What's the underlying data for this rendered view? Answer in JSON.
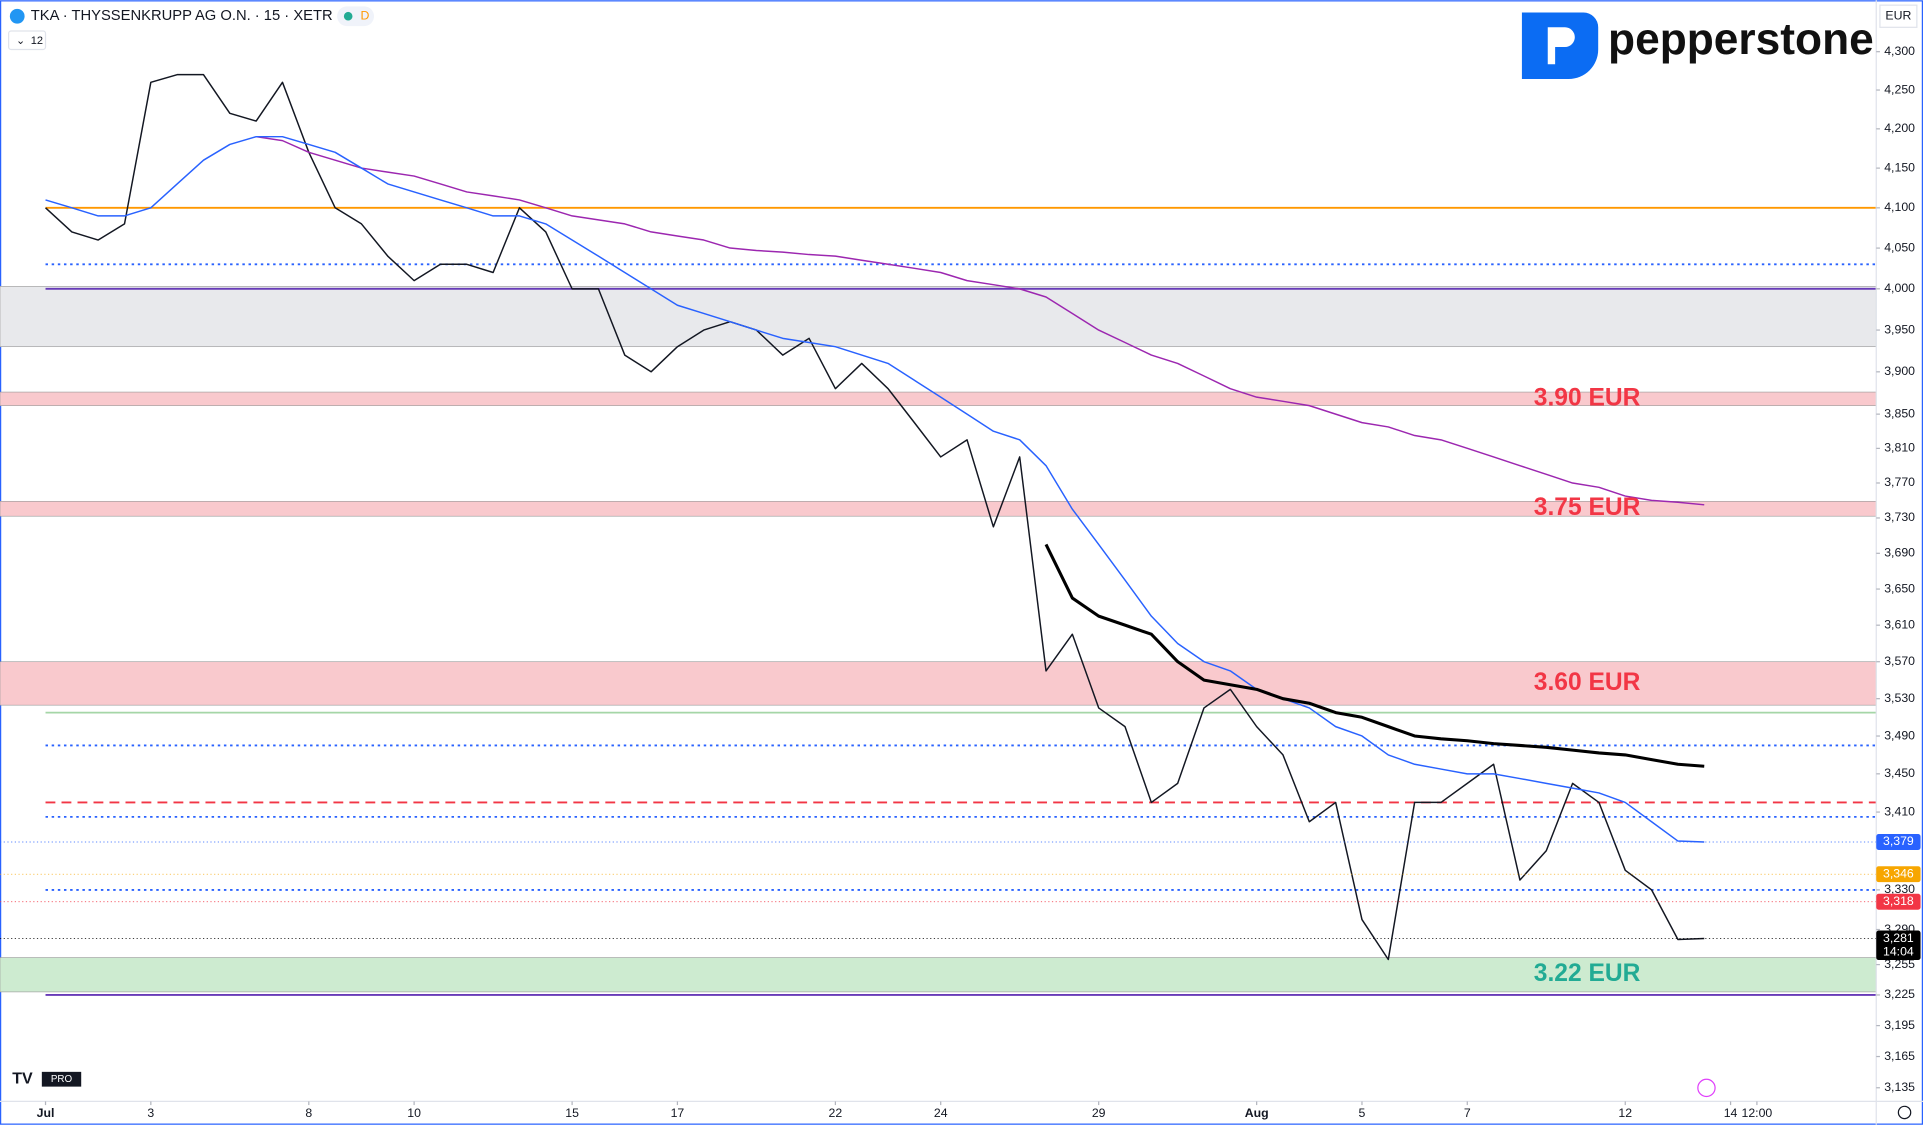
{
  "header": {
    "symbol": "TKA · THYSSENKRUPP AG O.N. · 15 · XETR",
    "badge": "D",
    "interval_count": "12",
    "currency": "EUR",
    "brand": "pepperstone",
    "tv_badge": "PRO"
  },
  "chart_data": {
    "type": "line",
    "log_scale": true,
    "categories": [
      "Jul",
      null,
      null,
      null,
      "3",
      null,
      null,
      null,
      null,
      null,
      "8",
      null,
      null,
      null,
      "10",
      null,
      null,
      null,
      null,
      null,
      "15",
      null,
      null,
      null,
      "17",
      null,
      null,
      null,
      null,
      null,
      "22",
      null,
      null,
      null,
      "24",
      null,
      null,
      null,
      null,
      null,
      "29",
      null,
      null,
      null,
      null,
      null,
      "Aug",
      null,
      null,
      null,
      "5",
      null,
      null,
      null,
      "7",
      null,
      null,
      null,
      null,
      null,
      "12",
      null,
      null,
      null,
      "14",
      "12:00"
    ],
    "series": [
      {
        "color": "#131722",
        "values": [
          4.1,
          4.07,
          4.06,
          4.08,
          4.26,
          4.27,
          4.27,
          4.22,
          4.21,
          4.26,
          4.17,
          4.1,
          4.08,
          4.04,
          4.01,
          4.03,
          4.03,
          4.02,
          4.1,
          4.07,
          4.0,
          4.0,
          3.92,
          3.9,
          3.93,
          3.95,
          3.96,
          3.95,
          3.92,
          3.94,
          3.88,
          3.91,
          3.88,
          3.84,
          3.8,
          3.82,
          3.72,
          3.8,
          3.56,
          3.6,
          3.52,
          3.5,
          3.42,
          3.44,
          3.52,
          3.54,
          3.5,
          3.47,
          3.4,
          3.42,
          3.3,
          3.26,
          3.42,
          3.42,
          3.44,
          3.46,
          3.34,
          3.37,
          3.44,
          3.42,
          3.35,
          3.33,
          3.28,
          3.281,
          null,
          null
        ]
      },
      {
        "color": "#9c27b0",
        "values": [
          null,
          null,
          null,
          null,
          null,
          null,
          null,
          null,
          4.19,
          4.185,
          4.17,
          4.16,
          4.15,
          4.145,
          4.14,
          4.13,
          4.12,
          4.115,
          4.11,
          4.1,
          4.09,
          4.085,
          4.08,
          4.07,
          4.065,
          4.06,
          4.05,
          4.047,
          4.045,
          4.042,
          4.04,
          4.035,
          4.03,
          4.025,
          4.02,
          4.01,
          4.005,
          4.0,
          3.99,
          3.97,
          3.95,
          3.935,
          3.92,
          3.91,
          3.895,
          3.88,
          3.87,
          3.865,
          3.86,
          3.85,
          3.84,
          3.835,
          3.825,
          3.82,
          3.81,
          3.8,
          3.79,
          3.78,
          3.77,
          3.765,
          3.755,
          3.75,
          3.748,
          3.745,
          null,
          null
        ]
      },
      {
        "color": "#2962ff",
        "values": [
          4.11,
          4.1,
          4.09,
          4.09,
          4.1,
          4.13,
          4.16,
          4.18,
          4.19,
          4.19,
          4.18,
          4.17,
          4.15,
          4.13,
          4.12,
          4.11,
          4.1,
          4.09,
          4.09,
          4.08,
          4.06,
          4.04,
          4.02,
          4.0,
          3.98,
          3.97,
          3.96,
          3.95,
          3.94,
          3.935,
          3.93,
          3.92,
          3.91,
          3.89,
          3.87,
          3.85,
          3.83,
          3.82,
          3.79,
          3.74,
          3.7,
          3.66,
          3.62,
          3.59,
          3.57,
          3.56,
          3.54,
          3.53,
          3.52,
          3.5,
          3.49,
          3.47,
          3.46,
          3.455,
          3.45,
          3.45,
          3.445,
          3.44,
          3.435,
          3.43,
          3.42,
          3.4,
          3.38,
          3.379,
          null,
          null
        ]
      },
      {
        "color": "#000000",
        "values": [
          null,
          null,
          null,
          null,
          null,
          null,
          null,
          null,
          null,
          null,
          null,
          null,
          null,
          null,
          null,
          null,
          null,
          null,
          null,
          null,
          null,
          null,
          null,
          null,
          null,
          null,
          null,
          null,
          null,
          null,
          null,
          null,
          null,
          null,
          null,
          null,
          null,
          null,
          3.7,
          3.64,
          3.62,
          3.61,
          3.6,
          3.57,
          3.55,
          3.545,
          3.54,
          3.53,
          3.525,
          3.515,
          3.51,
          3.5,
          3.49,
          3.487,
          3.485,
          3.482,
          3.48,
          3.478,
          3.475,
          3.472,
          3.47,
          3.465,
          3.46,
          3.458,
          null,
          null
        ]
      }
    ],
    "ylim": [
      3.122,
      4.368
    ],
    "yticks": [
      {
        "value": 4.3,
        "label": "4,300"
      },
      {
        "value": 4.25,
        "label": "4,250"
      },
      {
        "value": 4.2,
        "label": "4,200"
      },
      {
        "value": 4.15,
        "label": "4,150"
      },
      {
        "value": 4.1,
        "label": "4,100"
      },
      {
        "value": 4.05,
        "label": "4,050"
      },
      {
        "value": 4.0,
        "label": "4,000"
      },
      {
        "value": 3.95,
        "label": "3,950"
      },
      {
        "value": 3.9,
        "label": "3,900"
      },
      {
        "value": 3.85,
        "label": "3,850"
      },
      {
        "value": 3.81,
        "label": "3,810"
      },
      {
        "value": 3.77,
        "label": "3,770"
      },
      {
        "value": 3.73,
        "label": "3,730"
      },
      {
        "value": 3.69,
        "label": "3,690"
      },
      {
        "value": 3.65,
        "label": "3,650"
      },
      {
        "value": 3.61,
        "label": "3,610"
      },
      {
        "value": 3.57,
        "label": "3,570"
      },
      {
        "value": 3.53,
        "label": "3,530"
      },
      {
        "value": 3.49,
        "label": "3,490"
      },
      {
        "value": 3.45,
        "label": "3,450"
      },
      {
        "value": 3.41,
        "label": "3,410"
      },
      {
        "value": 3.33,
        "label": "3,330"
      },
      {
        "value": 3.29,
        "label": "3,290"
      },
      {
        "value": 3.255,
        "label": "3,255"
      },
      {
        "value": 3.225,
        "label": "3,225"
      },
      {
        "value": 3.195,
        "label": "3,195"
      },
      {
        "value": 3.165,
        "label": "3,165"
      },
      {
        "value": 3.135,
        "label": "3,135"
      }
    ],
    "zones": [
      {
        "low": 3.93,
        "high": 4.003,
        "color": "#e8e9ec"
      },
      {
        "low": 3.86,
        "high": 3.876,
        "color": "#f9c9cd",
        "label": "3.90 EUR",
        "label_color": "#f23645"
      },
      {
        "low": 3.732,
        "high": 3.749,
        "color": "#f9c9cd",
        "label": "3.75 EUR",
        "label_color": "#f23645"
      },
      {
        "low": 3.523,
        "high": 3.57,
        "color": "#f9c9cd",
        "label": "3.60 EUR",
        "label_color": "#f23645"
      },
      {
        "low": 3.228,
        "high": 3.262,
        "color": "#cdebd0",
        "label": "3.22 EUR",
        "label_color": "#22ab94"
      }
    ],
    "levels": [
      {
        "value": 4.03,
        "color": "#2962ff",
        "dash": "2 3"
      },
      {
        "value": 4.0,
        "color": "#673ab7",
        "dash": "none"
      },
      {
        "value": 3.42,
        "color": "#f23645",
        "dash": "8 5"
      },
      {
        "value": 3.405,
        "color": "#2962ff",
        "dash": "2 3"
      },
      {
        "value": 3.48,
        "color": "#2962ff",
        "dash": "2 3"
      },
      {
        "value": 3.33,
        "color": "#2962ff",
        "dash": "2 3"
      },
      {
        "value": 3.225,
        "color": "#673ab7",
        "dash": "none"
      },
      {
        "value": 3.515,
        "color": "#a5d6a7",
        "dash": "none"
      },
      {
        "value": 4.1,
        "color": "#ff9800",
        "dash": "none"
      }
    ],
    "price_tags": [
      {
        "value": 3.379,
        "label": "3,379",
        "color": "#2962ff"
      },
      {
        "value": 3.346,
        "label": "3,346",
        "color": "#f7a600"
      },
      {
        "value": 3.318,
        "label": "3,318",
        "color": "#f23645"
      },
      {
        "value": 3.281,
        "label": "3,281",
        "color": "#000000",
        "sub": "14:04"
      }
    ]
  }
}
